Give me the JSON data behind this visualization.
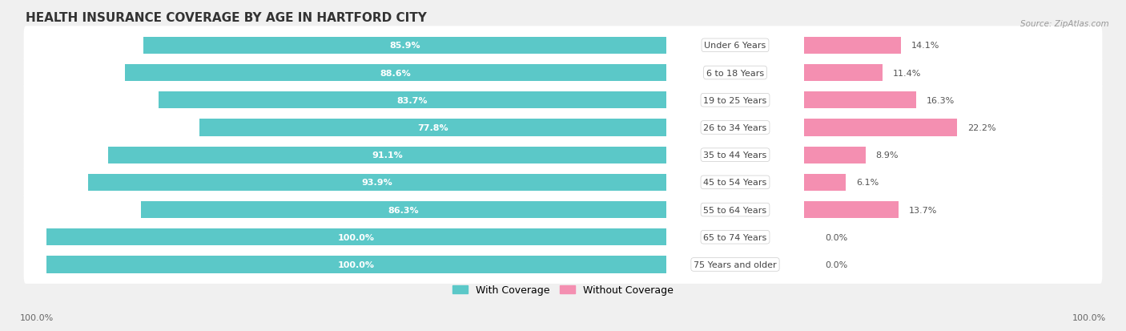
{
  "title": "HEALTH INSURANCE COVERAGE BY AGE IN HARTFORD CITY",
  "source": "Source: ZipAtlas.com",
  "categories": [
    "Under 6 Years",
    "6 to 18 Years",
    "19 to 25 Years",
    "26 to 34 Years",
    "35 to 44 Years",
    "45 to 54 Years",
    "55 to 64 Years",
    "65 to 74 Years",
    "75 Years and older"
  ],
  "with_coverage": [
    85.9,
    88.6,
    83.7,
    77.8,
    91.1,
    93.9,
    86.3,
    100.0,
    100.0
  ],
  "without_coverage": [
    14.1,
    11.4,
    16.3,
    22.2,
    8.9,
    6.1,
    13.7,
    0.0,
    0.0
  ],
  "color_with": "#5bc8c8",
  "color_without": "#f48fb1",
  "bg_color": "#f0f0f0",
  "row_bg_color": "#ffffff",
  "row_alt_bg": "#ebebeb",
  "legend_with": "With Coverage",
  "legend_without": "Without Coverage",
  "x_left_label": "100.0%",
  "x_right_label": "100.0%",
  "title_fontsize": 11,
  "label_fontsize": 8,
  "bar_label_fontsize": 8,
  "cat_label_fontsize": 8
}
